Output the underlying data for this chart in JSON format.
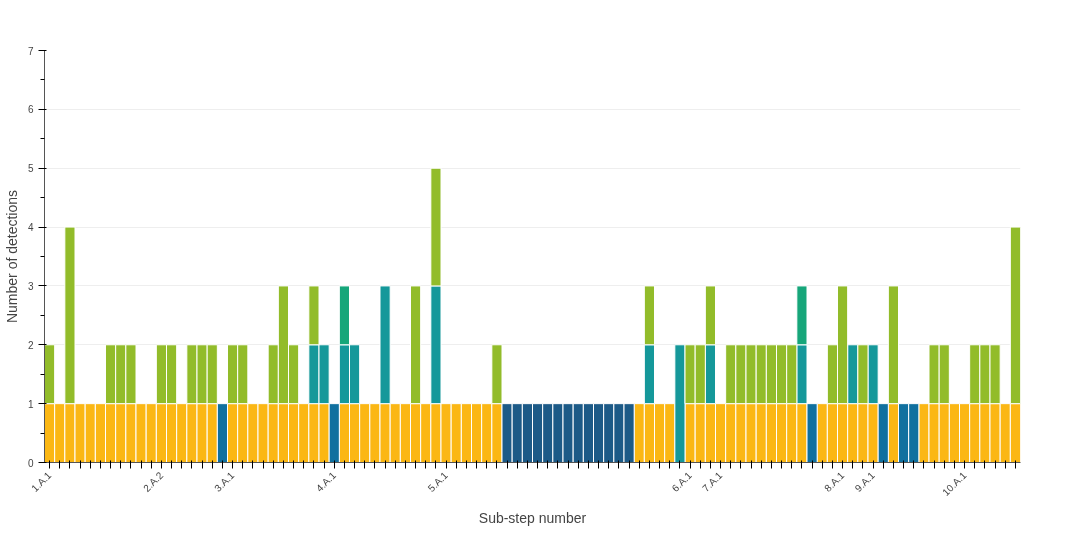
{
  "chart_data": {
    "type": "bar",
    "stacked": true,
    "xlabel": "Sub-step number",
    "ylabel": "Number of detections",
    "categories": [
      "1.A.1",
      null,
      null,
      null,
      null,
      null,
      null,
      null,
      null,
      null,
      null,
      "2.A.2",
      null,
      null,
      null,
      null,
      null,
      null,
      "3.A.1",
      null,
      null,
      null,
      null,
      null,
      null,
      null,
      null,
      null,
      "4.A.1",
      null,
      null,
      null,
      null,
      null,
      null,
      null,
      null,
      null,
      null,
      "5.A.1",
      null,
      null,
      null,
      null,
      null,
      null,
      null,
      null,
      null,
      null,
      null,
      null,
      null,
      null,
      null,
      null,
      null,
      null,
      null,
      null,
      null,
      null,
      null,
      "6.A.1",
      null,
      null,
      "7.A.1",
      null,
      null,
      null,
      null,
      null,
      null,
      null,
      null,
      null,
      null,
      null,
      "8.A.1",
      null,
      null,
      "9.A.1",
      null,
      null,
      null,
      null,
      null,
      null,
      null,
      null,
      "10.A.1",
      null,
      null,
      null,
      null,
      null
    ],
    "series": [
      {
        "color": "#fbb714",
        "values": [
          1,
          1,
          1,
          1,
          1,
          1,
          1,
          1,
          1,
          1,
          1,
          1,
          1,
          1,
          1,
          1,
          1,
          null,
          1,
          1,
          1,
          1,
          1,
          1,
          1,
          1,
          1,
          1,
          null,
          1,
          1,
          1,
          1,
          1,
          1,
          1,
          1,
          1,
          1,
          1,
          1,
          1,
          1,
          1,
          1,
          null,
          null,
          null,
          null,
          null,
          null,
          null,
          null,
          null,
          null,
          null,
          null,
          null,
          1,
          1,
          1,
          1,
          null,
          1,
          1,
          1,
          1,
          1,
          1,
          1,
          1,
          1,
          1,
          1,
          1,
          null,
          1,
          1,
          1,
          1,
          1,
          1,
          null,
          1,
          null,
          null,
          1,
          1,
          1,
          1,
          1,
          1,
          1,
          1,
          1,
          1
        ]
      },
      {
        "color": "#10709f",
        "values": [
          null,
          null,
          null,
          null,
          null,
          null,
          null,
          null,
          null,
          null,
          null,
          null,
          null,
          null,
          null,
          null,
          null,
          1,
          null,
          null,
          null,
          null,
          null,
          null,
          null,
          null,
          null,
          null,
          1,
          null,
          null,
          null,
          null,
          null,
          null,
          null,
          null,
          null,
          null,
          null,
          null,
          null,
          null,
          null,
          null,
          null,
          null,
          null,
          null,
          null,
          null,
          null,
          null,
          null,
          null,
          null,
          null,
          null,
          null,
          null,
          null,
          null,
          null,
          null,
          null,
          null,
          null,
          null,
          null,
          null,
          null,
          null,
          null,
          null,
          null,
          1,
          null,
          null,
          null,
          null,
          null,
          null,
          1,
          null,
          1,
          1,
          null,
          null,
          null,
          null,
          null,
          null,
          null,
          null,
          null,
          null
        ]
      },
      {
        "color": "#1c5a87",
        "values": [
          null,
          null,
          null,
          null,
          null,
          null,
          null,
          null,
          null,
          null,
          null,
          null,
          null,
          null,
          null,
          null,
          null,
          null,
          null,
          null,
          null,
          null,
          null,
          null,
          null,
          null,
          null,
          null,
          null,
          null,
          null,
          null,
          null,
          null,
          null,
          null,
          null,
          null,
          null,
          null,
          null,
          null,
          null,
          null,
          null,
          1,
          1,
          1,
          1,
          1,
          1,
          1,
          1,
          1,
          1,
          1,
          1,
          1,
          null,
          null,
          null,
          null,
          null,
          null,
          null,
          null,
          null,
          null,
          null,
          null,
          null,
          null,
          null,
          null,
          null,
          null,
          null,
          null,
          null,
          null,
          null,
          null,
          null,
          null,
          null,
          null,
          null,
          null,
          null,
          null,
          null,
          null,
          null,
          null,
          null,
          null
        ]
      },
      {
        "color": "#15989a",
        "values": [
          null,
          null,
          null,
          null,
          null,
          null,
          null,
          null,
          null,
          null,
          null,
          null,
          null,
          null,
          null,
          null,
          null,
          null,
          null,
          null,
          null,
          null,
          null,
          null,
          null,
          null,
          1,
          1,
          null,
          1,
          1,
          null,
          null,
          2,
          null,
          null,
          null,
          null,
          2,
          null,
          null,
          null,
          null,
          null,
          null,
          null,
          null,
          null,
          null,
          null,
          null,
          null,
          null,
          null,
          null,
          null,
          null,
          null,
          null,
          1,
          null,
          null,
          2,
          null,
          null,
          1,
          null,
          null,
          null,
          null,
          null,
          null,
          null,
          null,
          1,
          null,
          null,
          null,
          null,
          1,
          null,
          1,
          null,
          null,
          null,
          null,
          null,
          null,
          null,
          null,
          null,
          null,
          null,
          null,
          null,
          null
        ]
      },
      {
        "color": "#16a67a",
        "values": [
          null,
          null,
          null,
          null,
          null,
          null,
          null,
          null,
          null,
          null,
          null,
          null,
          null,
          null,
          null,
          null,
          null,
          null,
          null,
          null,
          null,
          null,
          null,
          null,
          null,
          null,
          null,
          null,
          null,
          1,
          null,
          null,
          null,
          null,
          null,
          null,
          null,
          null,
          null,
          null,
          null,
          null,
          null,
          null,
          null,
          null,
          null,
          null,
          null,
          null,
          null,
          null,
          null,
          null,
          null,
          null,
          null,
          null,
          null,
          null,
          null,
          null,
          null,
          null,
          null,
          null,
          null,
          null,
          null,
          null,
          null,
          null,
          null,
          null,
          1,
          null,
          null,
          null,
          null,
          null,
          null,
          null,
          null,
          null,
          null,
          null,
          null,
          null,
          null,
          null,
          null,
          null,
          null,
          null,
          null,
          null
        ]
      },
      {
        "color": "#92bc2a",
        "values": [
          1,
          null,
          3,
          null,
          null,
          null,
          1,
          1,
          1,
          null,
          null,
          1,
          1,
          null,
          1,
          1,
          1,
          null,
          1,
          1,
          null,
          null,
          1,
          2,
          1,
          null,
          1,
          null,
          null,
          null,
          null,
          null,
          null,
          null,
          null,
          null,
          2,
          null,
          2,
          null,
          null,
          null,
          null,
          null,
          1,
          null,
          null,
          null,
          null,
          null,
          null,
          null,
          null,
          null,
          null,
          null,
          null,
          null,
          null,
          1,
          null,
          null,
          null,
          1,
          1,
          1,
          null,
          1,
          1,
          1,
          1,
          1,
          1,
          1,
          null,
          null,
          null,
          1,
          2,
          null,
          1,
          null,
          null,
          2,
          null,
          null,
          null,
          1,
          1,
          null,
          null,
          1,
          1,
          1,
          null,
          3
        ]
      }
    ],
    "ylim": [
      0,
      7
    ],
    "yticks": [
      0,
      1,
      2,
      3,
      4,
      5,
      6,
      7
    ],
    "grid": "y"
  }
}
